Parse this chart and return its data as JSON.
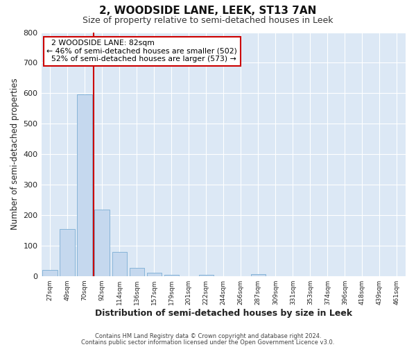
{
  "title": "2, WOODSIDE LANE, LEEK, ST13 7AN",
  "subtitle": "Size of property relative to semi-detached houses in Leek",
  "xlabel": "Distribution of semi-detached houses by size in Leek",
  "ylabel": "Number of semi-detached properties",
  "bar_labels": [
    "27sqm",
    "49sqm",
    "70sqm",
    "92sqm",
    "114sqm",
    "136sqm",
    "157sqm",
    "179sqm",
    "201sqm",
    "222sqm",
    "244sqm",
    "266sqm",
    "287sqm",
    "309sqm",
    "331sqm",
    "353sqm",
    "374sqm",
    "396sqm",
    "418sqm",
    "439sqm",
    "461sqm"
  ],
  "bar_values": [
    20,
    155,
    595,
    218,
    80,
    26,
    10,
    3,
    0,
    4,
    0,
    0,
    6,
    0,
    0,
    0,
    0,
    0,
    0,
    0,
    0
  ],
  "bar_color": "#c5d8ee",
  "bar_edge_color": "#7aadd4",
  "property_label": "2 WOODSIDE LANE: 82sqm",
  "pct_smaller": 46,
  "count_smaller": 502,
  "pct_larger": 52,
  "count_larger": 573,
  "line_color": "#cc0000",
  "ylim": [
    0,
    800
  ],
  "yticks": [
    0,
    100,
    200,
    300,
    400,
    500,
    600,
    700,
    800
  ],
  "footer_line1": "Contains HM Land Registry data © Crown copyright and database right 2024.",
  "footer_line2": "Contains public sector information licensed under the Open Government Licence v3.0.",
  "fig_background": "#ffffff",
  "plot_background": "#dce8f5",
  "grid_color": "#ffffff"
}
